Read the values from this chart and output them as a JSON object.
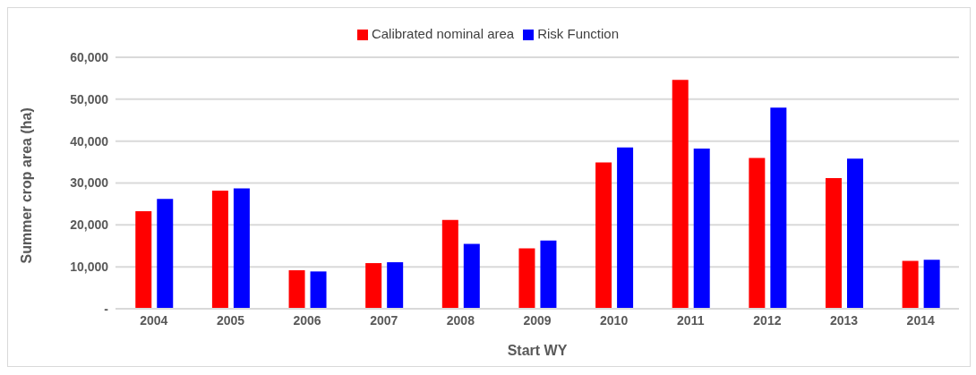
{
  "chart_data": {
    "type": "bar",
    "xlabel": "Start WY",
    "ylabel": "Summer crop area (ha)",
    "categories": [
      "2004",
      "2005",
      "2006",
      "2007",
      "2008",
      "2009",
      "2010",
      "2011",
      "2012",
      "2013",
      "2014"
    ],
    "series": [
      {
        "name": "Calibrated nominal area",
        "color": "#ff0000",
        "values": [
          23300,
          28200,
          9200,
          10900,
          21200,
          14400,
          34900,
          54600,
          36000,
          31200,
          11400
        ]
      },
      {
        "name": "Risk Function",
        "color": "#0000ff",
        "values": [
          26200,
          28700,
          8900,
          11100,
          15500,
          16300,
          38500,
          38200,
          48000,
          35800,
          11700
        ]
      }
    ],
    "ylim": [
      0,
      60000
    ],
    "yticks": [
      {
        "value": 0,
        "label": "-"
      },
      {
        "value": 10000,
        "label": "10,000"
      },
      {
        "value": 20000,
        "label": "20,000"
      },
      {
        "value": 30000,
        "label": "30,000"
      },
      {
        "value": 40000,
        "label": "40,000"
      },
      {
        "value": 50000,
        "label": "50,000"
      },
      {
        "value": 60000,
        "label": "60,000"
      }
    ],
    "grid": "y",
    "legend": "top"
  }
}
